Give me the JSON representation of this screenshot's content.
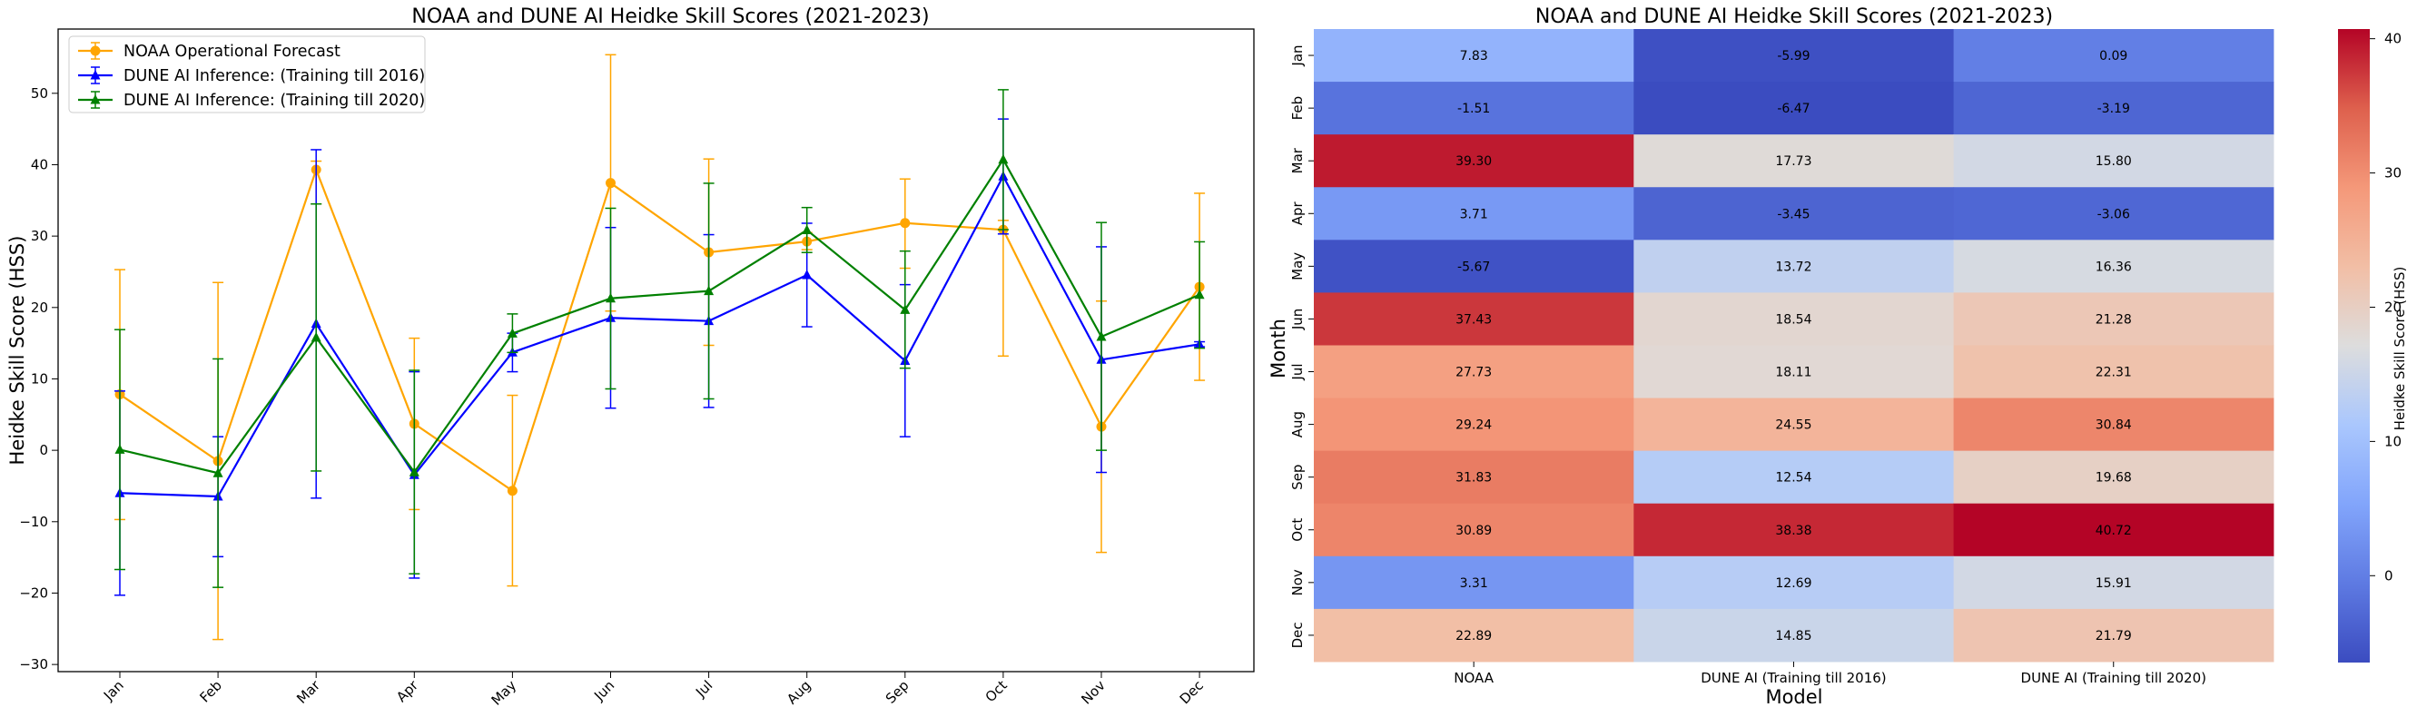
{
  "chart_data": [
    {
      "type": "line",
      "title": "NOAA and DUNE AI Heidke Skill Scores (2021-2023)",
      "xlabel": "",
      "ylabel": "Heidke Skill Score (HSS)",
      "categories": [
        "Jan",
        "Feb",
        "Mar",
        "Apr",
        "May",
        "Jun",
        "Jul",
        "Aug",
        "Sep",
        "Oct",
        "Nov",
        "Dec"
      ],
      "ylim": [
        -31,
        59
      ],
      "yticks": [
        -30,
        -20,
        -10,
        0,
        10,
        20,
        30,
        40,
        50
      ],
      "ytick_labels": [
        "−30",
        "−20",
        "−10",
        "0",
        "10",
        "20",
        "30",
        "40",
        "50"
      ],
      "legend_position": "upper-left",
      "series": [
        {
          "name": "NOAA Operational Forecast",
          "color": "#ffa500",
          "marker": "circle",
          "values": [
            7.83,
            -1.51,
            39.3,
            3.71,
            -5.67,
            37.43,
            27.73,
            29.24,
            31.83,
            30.89,
            3.31,
            22.89
          ],
          "err_low": [
            -9.7,
            -26.5,
            34.5,
            -8.3,
            -19.0,
            19.5,
            14.7,
            28.1,
            25.5,
            13.2,
            -14.3,
            9.8
          ],
          "err_high": [
            25.3,
            23.5,
            40.5,
            15.7,
            7.7,
            55.4,
            40.8,
            30.5,
            38.0,
            32.2,
            20.9,
            36.0
          ]
        },
        {
          "name": "DUNE AI Inference: (Training till 2016)",
          "color": "#0000ff",
          "marker": "triangle",
          "values": [
            -5.99,
            -6.47,
            17.73,
            -3.45,
            13.72,
            18.54,
            18.11,
            24.55,
            12.54,
            38.38,
            12.69,
            14.85
          ],
          "err_low": [
            -20.3,
            -14.9,
            -6.7,
            -17.9,
            11.0,
            5.9,
            6.0,
            17.3,
            1.9,
            30.3,
            -3.1,
            14.5
          ],
          "err_high": [
            8.3,
            1.9,
            42.1,
            11.0,
            16.4,
            31.2,
            30.2,
            31.8,
            23.2,
            46.4,
            28.5,
            15.2
          ]
        },
        {
          "name": "DUNE AI Inference: (Training till 2020)",
          "color": "#008000",
          "marker": "triangle",
          "values": [
            0.09,
            -3.19,
            15.8,
            -3.06,
            16.36,
            21.28,
            22.31,
            30.84,
            19.68,
            40.72,
            15.91,
            21.79
          ],
          "err_low": [
            -16.7,
            -19.2,
            -2.9,
            -17.3,
            13.7,
            8.6,
            7.2,
            27.7,
            11.5,
            30.9,
            0.0,
            14.3
          ],
          "err_high": [
            16.9,
            12.8,
            34.5,
            11.2,
            19.1,
            33.9,
            37.4,
            34.0,
            27.9,
            50.5,
            31.9,
            29.2
          ]
        }
      ]
    },
    {
      "type": "heatmap",
      "title": "NOAA and DUNE AI Heidke Skill Scores (2021-2023)",
      "xlabel": "Model",
      "ylabel": "Month",
      "x": [
        "NOAA",
        "DUNE AI (Training till 2016)",
        "DUNE AI (Training till 2020)"
      ],
      "y": [
        "Jan",
        "Feb",
        "Mar",
        "Apr",
        "May",
        "Jun",
        "Jul",
        "Aug",
        "Sep",
        "Oct",
        "Nov",
        "Dec"
      ],
      "values": [
        [
          7.83,
          -5.99,
          0.09
        ],
        [
          -1.51,
          -6.47,
          -3.19
        ],
        [
          39.3,
          17.73,
          15.8
        ],
        [
          3.71,
          -3.45,
          -3.06
        ],
        [
          -5.67,
          13.72,
          16.36
        ],
        [
          37.43,
          18.54,
          21.28
        ],
        [
          27.73,
          18.11,
          22.31
        ],
        [
          29.24,
          24.55,
          30.84
        ],
        [
          31.83,
          12.54,
          19.68
        ],
        [
          30.89,
          38.38,
          40.72
        ],
        [
          3.31,
          12.69,
          15.91
        ],
        [
          22.89,
          14.85,
          21.79
        ]
      ],
      "cell_labels": [
        [
          "7.83",
          "-5.99",
          "0.09"
        ],
        [
          "-1.51",
          "-6.47",
          "-3.19"
        ],
        [
          "39.30",
          "17.73",
          "15.80"
        ],
        [
          "3.71",
          "-3.45",
          "-3.06"
        ],
        [
          "-5.67",
          "13.72",
          "16.36"
        ],
        [
          "37.43",
          "18.54",
          "21.28"
        ],
        [
          "27.73",
          "18.11",
          "22.31"
        ],
        [
          "29.24",
          "24.55",
          "30.84"
        ],
        [
          "31.83",
          "12.54",
          "19.68"
        ],
        [
          "30.89",
          "38.38",
          "40.72"
        ],
        [
          "3.31",
          "12.69",
          "15.91"
        ],
        [
          "22.89",
          "14.85",
          "21.79"
        ]
      ],
      "colormap": "coolwarm",
      "vmin": -6.47,
      "vmax": 40.72,
      "colorbar_label": "Heidke Skill Score (HSS)",
      "colorbar_ticks": [
        0,
        10,
        20,
        30,
        40
      ],
      "colorbar_tick_labels": [
        "0",
        "10",
        "20",
        "30",
        "40"
      ]
    }
  ]
}
